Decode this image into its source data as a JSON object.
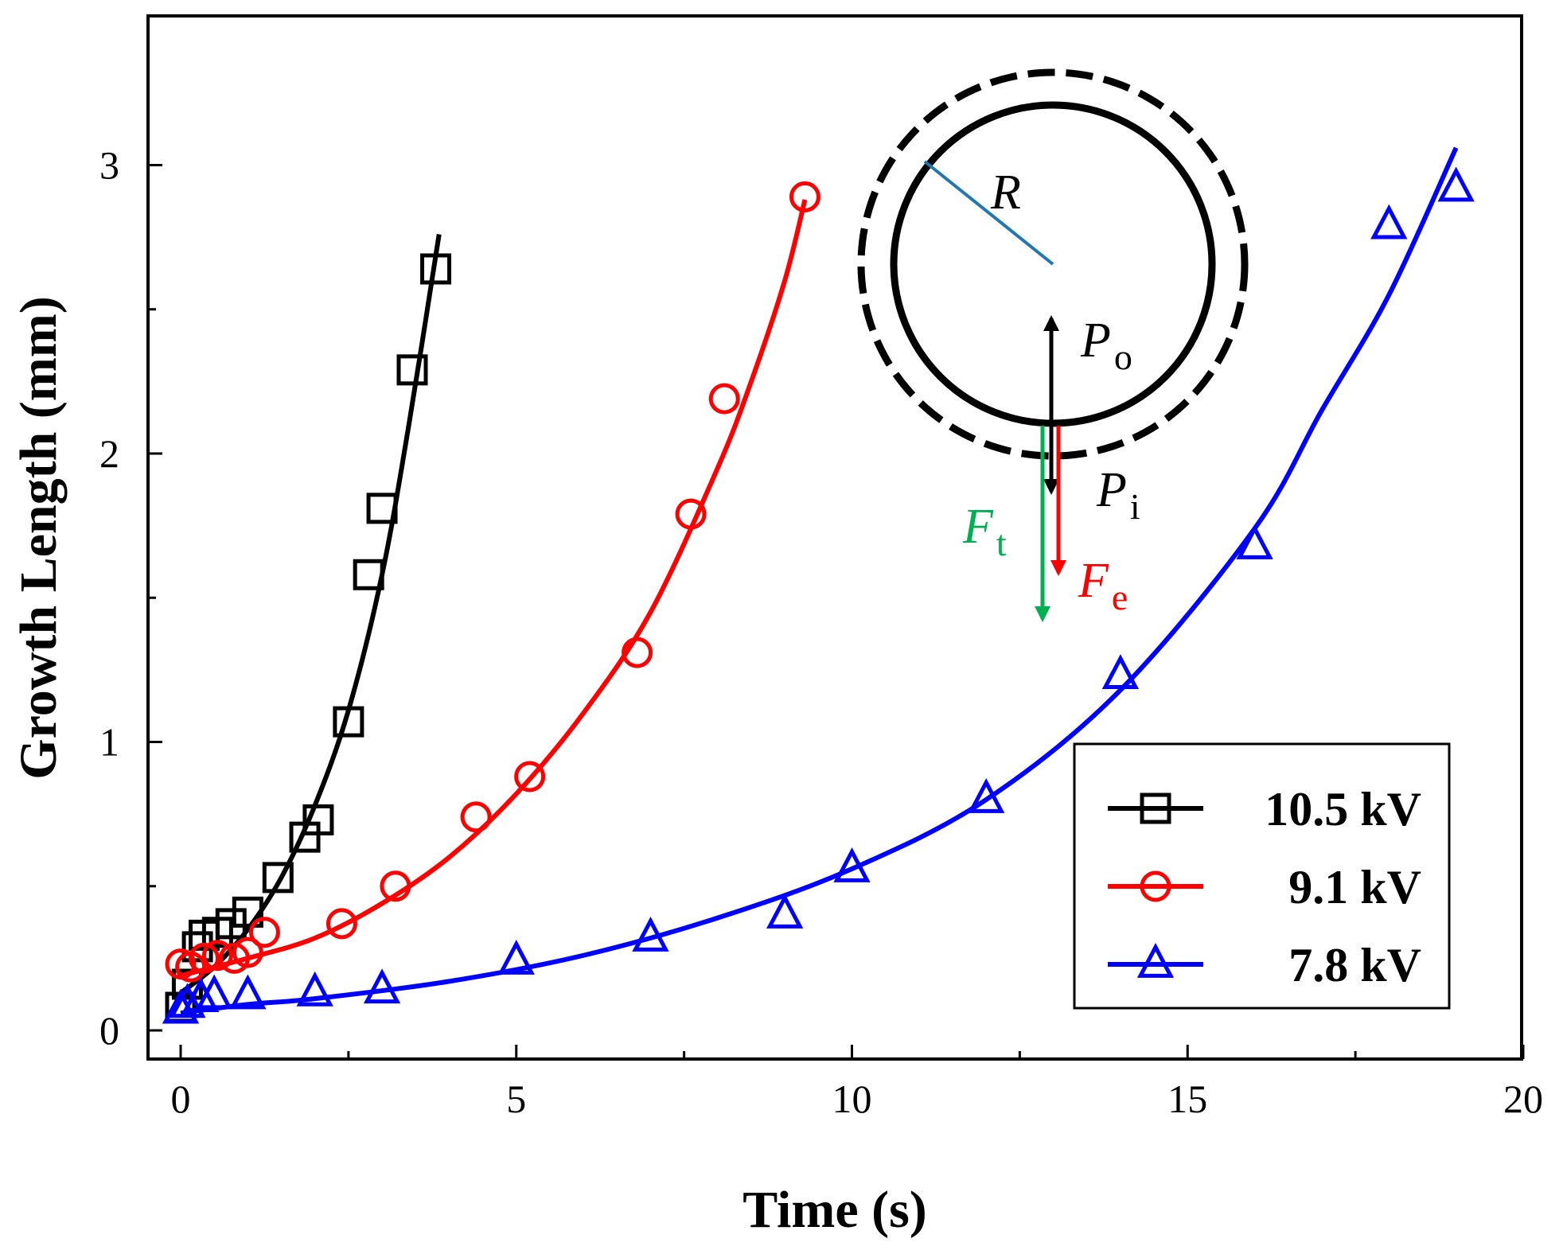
{
  "chart_data": {
    "type": "scatter",
    "title": "",
    "xlabel": "Time (s)",
    "ylabel": "Growth Length (mm)",
    "xlim": [
      -0.5,
      20
    ],
    "ylim": [
      -0.1,
      3.4
    ],
    "x_ticks": [
      0,
      5,
      10,
      15,
      20
    ],
    "y_ticks": [
      0,
      1,
      2,
      3
    ],
    "grid": false,
    "legend_position": "bottom-right",
    "series": [
      {
        "name": "10.5 kV",
        "color": "#000000",
        "marker": "square",
        "points": [
          [
            0.0,
            0.08
          ],
          [
            0.1,
            0.16
          ],
          [
            0.25,
            0.29
          ],
          [
            0.35,
            0.33
          ],
          [
            0.55,
            0.34
          ],
          [
            0.75,
            0.37
          ],
          [
            1.0,
            0.41
          ],
          [
            1.45,
            0.53
          ],
          [
            1.85,
            0.67
          ],
          [
            2.05,
            0.73
          ],
          [
            2.5,
            1.07
          ],
          [
            2.8,
            1.58
          ],
          [
            3.0,
            1.81
          ],
          [
            3.45,
            2.29
          ],
          [
            3.8,
            2.64
          ]
        ],
        "fit": [
          [
            0.0,
            0.13
          ],
          [
            0.5,
            0.22
          ],
          [
            1.0,
            0.35
          ],
          [
            1.5,
            0.53
          ],
          [
            2.0,
            0.78
          ],
          [
            2.5,
            1.11
          ],
          [
            3.0,
            1.58
          ],
          [
            3.4,
            2.1
          ],
          [
            3.85,
            2.76
          ]
        ]
      },
      {
        "name": "9.1 kV",
        "color": "#ff0000",
        "marker": "circle",
        "points": [
          [
            0.0,
            0.23
          ],
          [
            0.15,
            0.22
          ],
          [
            0.35,
            0.25
          ],
          [
            0.55,
            0.26
          ],
          [
            0.8,
            0.25
          ],
          [
            1.0,
            0.27
          ],
          [
            1.25,
            0.34
          ],
          [
            2.4,
            0.37
          ],
          [
            3.2,
            0.5
          ],
          [
            4.4,
            0.74
          ],
          [
            5.2,
            0.88
          ],
          [
            6.8,
            1.31
          ],
          [
            7.6,
            1.79
          ],
          [
            8.1,
            2.19
          ],
          [
            9.3,
            2.89
          ]
        ],
        "fit": [
          [
            0.0,
            0.19
          ],
          [
            1.0,
            0.25
          ],
          [
            2.0,
            0.32
          ],
          [
            3.0,
            0.44
          ],
          [
            4.0,
            0.6
          ],
          [
            5.0,
            0.82
          ],
          [
            6.0,
            1.1
          ],
          [
            7.0,
            1.45
          ],
          [
            8.0,
            1.95
          ],
          [
            8.5,
            2.25
          ],
          [
            9.0,
            2.6
          ],
          [
            9.3,
            2.88
          ]
        ]
      },
      {
        "name": "7.8 kV",
        "color": "#0000ff",
        "marker": "triangle",
        "points": [
          [
            0.0,
            0.07
          ],
          [
            0.1,
            0.09
          ],
          [
            0.3,
            0.11
          ],
          [
            0.5,
            0.12
          ],
          [
            1.0,
            0.12
          ],
          [
            2.0,
            0.13
          ],
          [
            3.0,
            0.14
          ],
          [
            5.0,
            0.24
          ],
          [
            7.0,
            0.32
          ],
          [
            9.0,
            0.4
          ],
          [
            10.0,
            0.56
          ],
          [
            12.0,
            0.8
          ],
          [
            14.0,
            1.23
          ],
          [
            16.0,
            1.68
          ],
          [
            18.0,
            2.79
          ],
          [
            19.0,
            2.92
          ]
        ],
        "fit": [
          [
            0.0,
            0.06
          ],
          [
            1.0,
            0.09
          ],
          [
            2.0,
            0.11
          ],
          [
            4.0,
            0.17
          ],
          [
            6.0,
            0.26
          ],
          [
            8.0,
            0.39
          ],
          [
            10.0,
            0.56
          ],
          [
            12.0,
            0.8
          ],
          [
            14.0,
            1.18
          ],
          [
            16.0,
            1.74
          ],
          [
            17.0,
            2.15
          ],
          [
            18.0,
            2.55
          ],
          [
            19.0,
            3.06
          ]
        ]
      }
    ],
    "inset_labels": {
      "radius": "R",
      "outer_pressure": "P",
      "outer_pressure_sub": "o",
      "inner_pressure": "P",
      "inner_pressure_sub": "i",
      "tension_force": "F",
      "tension_force_sub": "t",
      "electric_force": "F",
      "electric_force_sub": "e",
      "colors": {
        "radius_line": "#1f77b4",
        "tension_force": "#00b050",
        "electric_force": "#ff0000",
        "pressure": "#000000"
      }
    }
  }
}
